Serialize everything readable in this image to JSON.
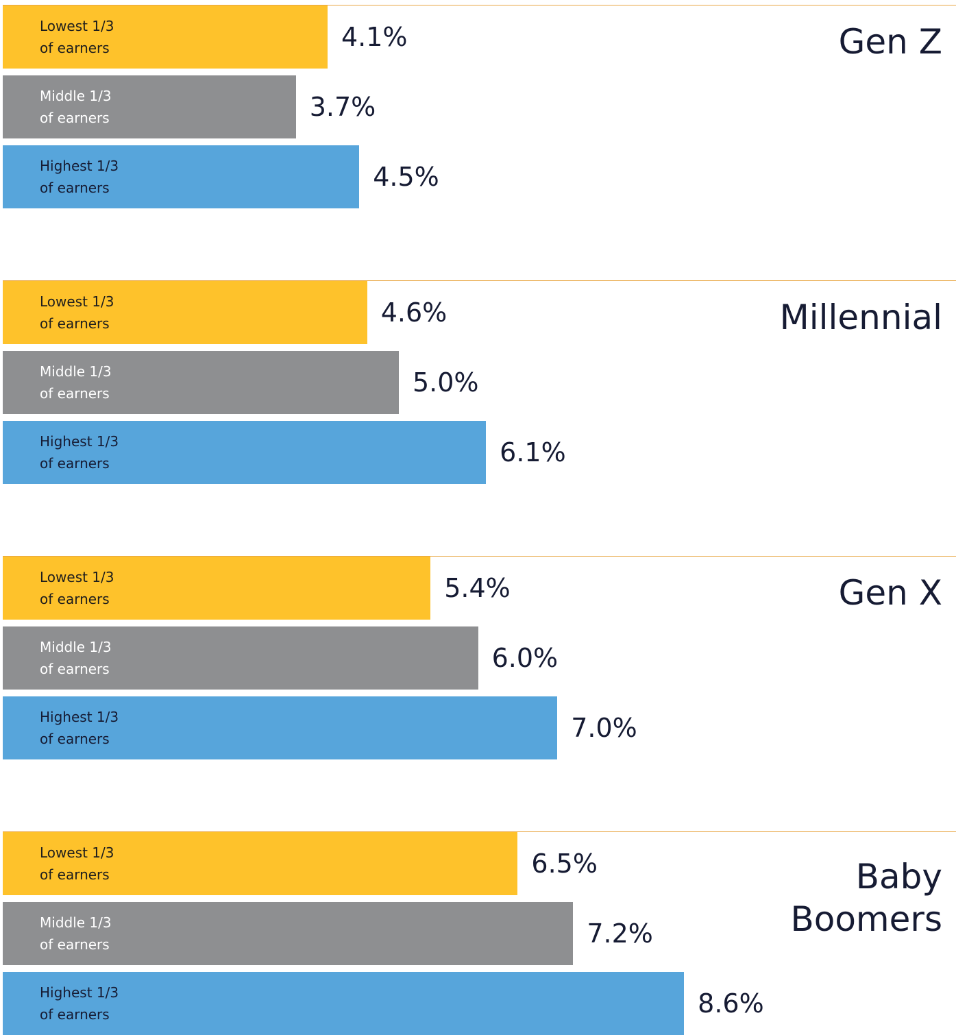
{
  "chart_data": {
    "type": "bar",
    "orientation": "horizontal",
    "categories": [
      "Gen Z",
      "Millennial",
      "Gen X",
      "Baby Boomers"
    ],
    "series": [
      {
        "name": "Lowest 1/3 of earners",
        "color": "#fec22b",
        "values": [
          4.1,
          4.6,
          5.4,
          6.5
        ],
        "value_labels": [
          "4.1%",
          "4.6%",
          "5.4%",
          "6.5%"
        ]
      },
      {
        "name": "Middle 1/3 of earners",
        "color": "#8e8f91",
        "values": [
          3.7,
          5.0,
          6.0,
          7.2
        ],
        "value_labels": [
          "3.7%",
          "5.0%",
          "6.0%",
          "7.2%"
        ]
      },
      {
        "name": "Highest 1/3 of earners",
        "color": "#57a5db",
        "values": [
          4.5,
          6.1,
          7.0,
          8.6
        ],
        "value_labels": [
          "4.5%",
          "6.1%",
          "7.0%",
          "8.6%"
        ]
      }
    ]
  }
}
